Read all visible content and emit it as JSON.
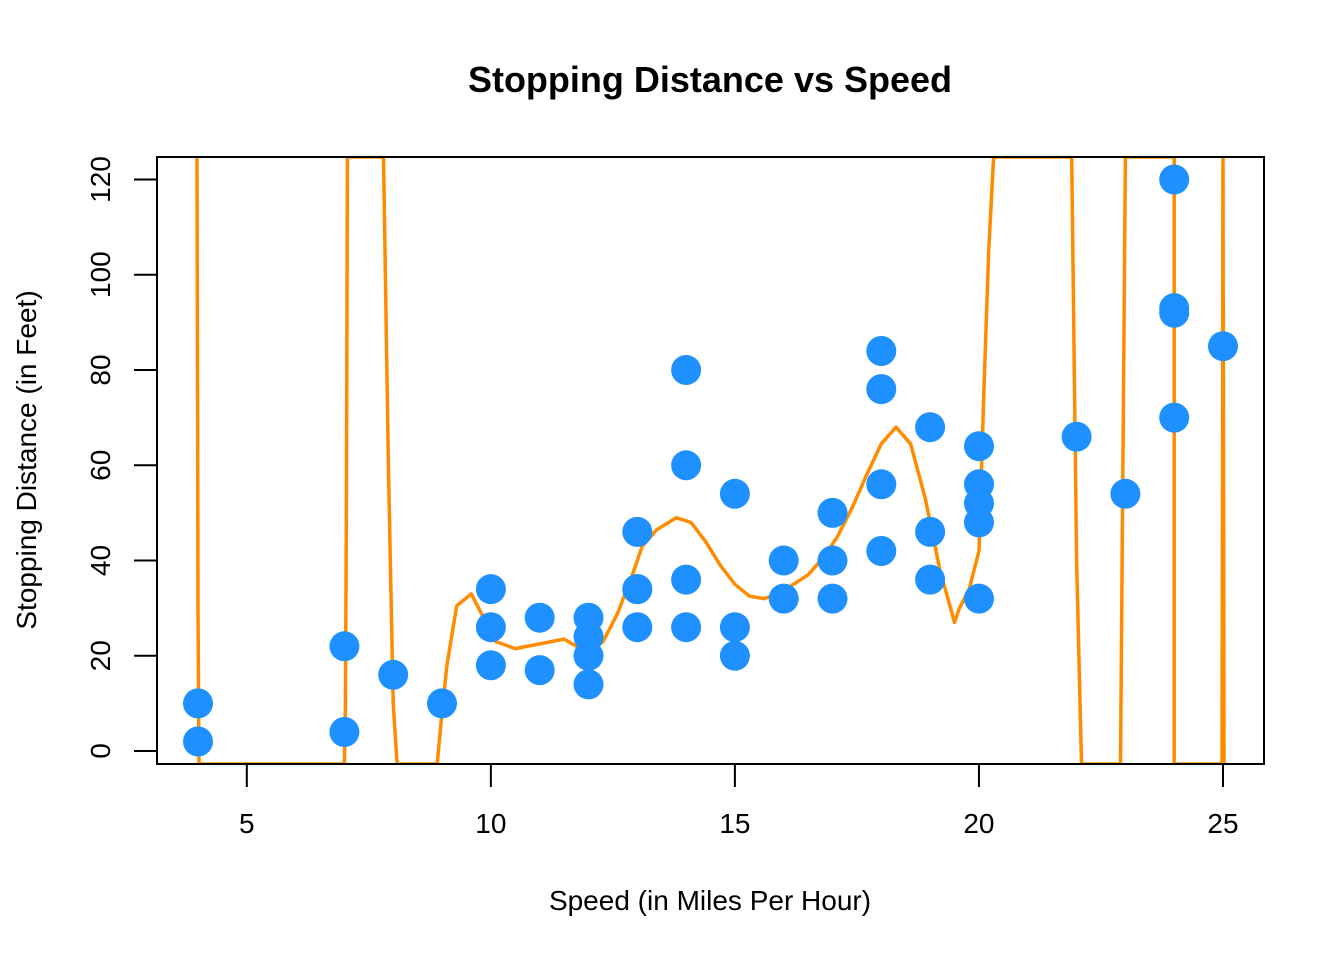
{
  "chart_data": {
    "type": "scatter",
    "title": "Stopping Distance vs Speed",
    "xlabel": "Speed (in Miles Per Hour)",
    "ylabel": "Stopping Distance (in Feet)",
    "xlim": [
      3.16,
      25.84
    ],
    "ylim": [
      -2.72,
      124.72
    ],
    "x_ticks": [
      5,
      10,
      15,
      20,
      25
    ],
    "y_ticks": [
      0,
      20,
      40,
      60,
      80,
      100,
      120
    ],
    "grid": false,
    "legend": "none",
    "colors": {
      "points": "#1E90FF",
      "line": "#FF8C00",
      "axes": "#000000"
    },
    "series": [
      {
        "type": "scatter",
        "x": [
          4,
          4,
          7,
          7,
          8,
          9,
          10,
          10,
          10,
          11,
          11,
          12,
          12,
          12,
          12,
          13,
          13,
          13,
          13,
          14,
          14,
          14,
          14,
          15,
          15,
          15,
          16,
          16,
          17,
          17,
          17,
          18,
          18,
          18,
          18,
          19,
          19,
          19,
          20,
          20,
          20,
          20,
          20,
          22,
          23,
          24,
          24,
          24,
          24,
          25
        ],
        "y": [
          2,
          10,
          4,
          22,
          16,
          10,
          18,
          26,
          34,
          17,
          28,
          14,
          20,
          24,
          28,
          26,
          34,
          34,
          46,
          26,
          36,
          60,
          80,
          20,
          26,
          54,
          32,
          40,
          32,
          40,
          50,
          42,
          56,
          76,
          84,
          36,
          46,
          68,
          32,
          48,
          52,
          56,
          64,
          66,
          54,
          70,
          92,
          93,
          120,
          85
        ]
      },
      {
        "type": "line",
        "x": [
          3.98,
          4.0,
          4.02,
          7.0,
          7.02,
          7.04,
          7.06,
          7.1,
          7.8,
          7.9,
          8.0,
          8.08,
          8.9,
          9.0,
          9.1,
          9.3,
          9.6,
          9.9,
          10.1,
          10.5,
          11.0,
          11.5,
          12.0,
          12.3,
          12.6,
          12.9,
          13.1,
          13.4,
          13.8,
          14.1,
          14.4,
          14.7,
          15.0,
          15.3,
          15.6,
          15.9,
          16.2,
          16.5,
          16.8,
          17.1,
          17.4,
          17.7,
          18.0,
          18.3,
          18.6,
          18.9,
          19.2,
          19.5,
          19.6,
          19.8,
          20.0,
          20.1,
          20.2,
          20.3,
          20.35,
          21.9,
          22.0,
          22.1,
          22.1,
          22.9,
          23.0,
          23.0,
          23.9,
          24.0,
          24.0,
          24.98,
          25.0,
          25.02
        ],
        "y": [
          124.72,
          30,
          -2.72,
          -2.72,
          10,
          50,
          124.72,
          124.72,
          124.72,
          60,
          10,
          -2.72,
          -2.72,
          8,
          18,
          30.5,
          33,
          27,
          23,
          21.5,
          22.5,
          23.5,
          20.5,
          23,
          29,
          37,
          43,
          46.5,
          49,
          48,
          44,
          39,
          35,
          32.5,
          32,
          33,
          35,
          37,
          40.5,
          45,
          51,
          58,
          64.5,
          68,
          64.5,
          53,
          38,
          27,
          30,
          34,
          42,
          75,
          105,
          124.72,
          124.72,
          124.72,
          40,
          -2.72,
          -2.72,
          -2.72,
          124.72,
          124.72,
          124.72,
          124.72,
          -2.72,
          -2.72,
          124.72,
          -2.72
        ]
      }
    ]
  }
}
